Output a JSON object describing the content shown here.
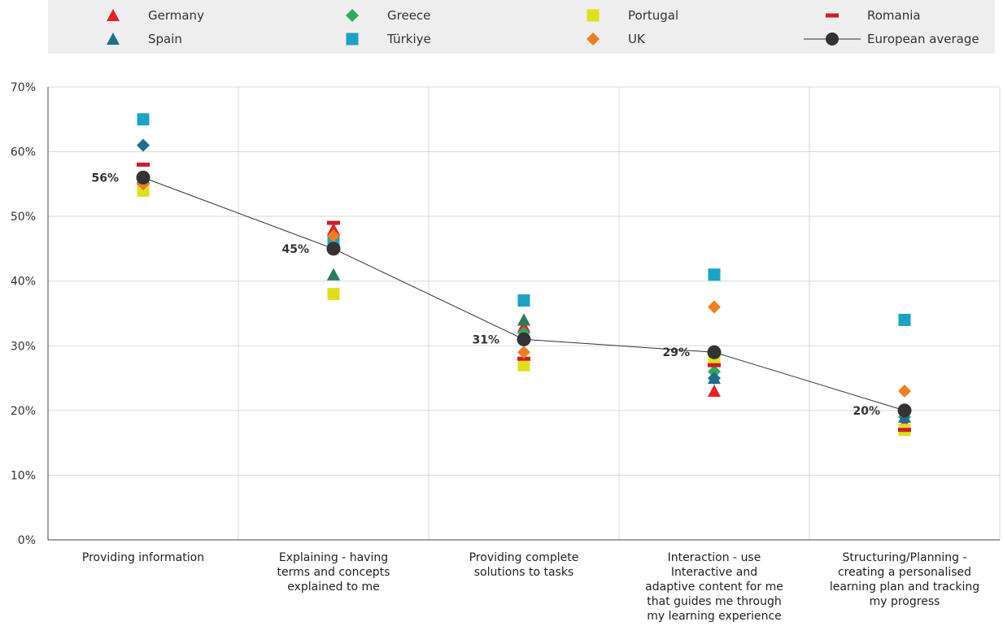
{
  "chart_data": {
    "type": "scatter",
    "title": "",
    "xlabel": "",
    "ylabel": "",
    "ylim": [
      0,
      70
    ],
    "yticks": [
      0,
      10,
      20,
      30,
      40,
      50,
      60,
      70
    ],
    "ytick_labels": [
      "0%",
      "10%",
      "20%",
      "30%",
      "40%",
      "50%",
      "60%",
      "70%"
    ],
    "grid": true,
    "legend_position": "top",
    "categories": [
      [
        "Providing information"
      ],
      [
        "Explaining - having",
        "terms and concepts",
        "explained to me"
      ],
      [
        "Providing complete",
        "solutions to tasks"
      ],
      [
        "Interaction - use",
        "Interactive and",
        "adaptive content for me",
        "that guides me through",
        "my learning experience"
      ],
      [
        "Structuring/Planning -",
        "creating a personalised",
        "learning plan and tracking",
        "my progress"
      ]
    ],
    "series": [
      {
        "name": "Germany",
        "marker": "triangle",
        "color": "#e8202a",
        "values": [
          56,
          48,
          33,
          23,
          18
        ]
      },
      {
        "name": "Greece",
        "marker": "diamond",
        "color": "#2eaa5c",
        "values": [
          55,
          47,
          32,
          26,
          19
        ]
      },
      {
        "name": "Portugal",
        "marker": "square",
        "color": "#dfe01c",
        "values": [
          54,
          38,
          27,
          28,
          17
        ]
      },
      {
        "name": "Romania",
        "marker": "dash",
        "color": "#c8202a",
        "values": [
          58,
          49,
          28,
          27,
          17
        ]
      },
      {
        "name": "Spain",
        "marker": "triangle",
        "color": "#1f6e8c",
        "values": [
          56,
          41,
          34,
          25,
          19
        ]
      },
      {
        "name": "Türkiye",
        "marker": "square",
        "color": "#1aa3c4",
        "values": [
          65,
          46,
          37,
          41,
          34
        ]
      },
      {
        "name": "UK",
        "marker": "diamond",
        "color": "#f07d22",
        "values": [
          55,
          47,
          29,
          36,
          23
        ]
      },
      {
        "name": "European average",
        "marker": "circle-line",
        "color": "#333333",
        "values": [
          56,
          45,
          31,
          29,
          20
        ],
        "labels": [
          "56%",
          "45%",
          "31%",
          "29%",
          "20%"
        ]
      }
    ],
    "extra_points": [
      {
        "category_index": 0,
        "value": 61,
        "marker": "diamond",
        "color": "#1f6e8c"
      },
      {
        "category_index": 1,
        "value": 41,
        "marker": "triangle",
        "color": "#2a7a5c"
      },
      {
        "category_index": 2,
        "value": 31,
        "marker": "circle",
        "color": "#1f6e8c"
      },
      {
        "category_index": 2,
        "value": 34,
        "marker": "triangle",
        "color": "#2a7a5c"
      },
      {
        "category_index": 3,
        "value": 25,
        "marker": "diamond",
        "color": "#1f6e8c"
      }
    ]
  }
}
